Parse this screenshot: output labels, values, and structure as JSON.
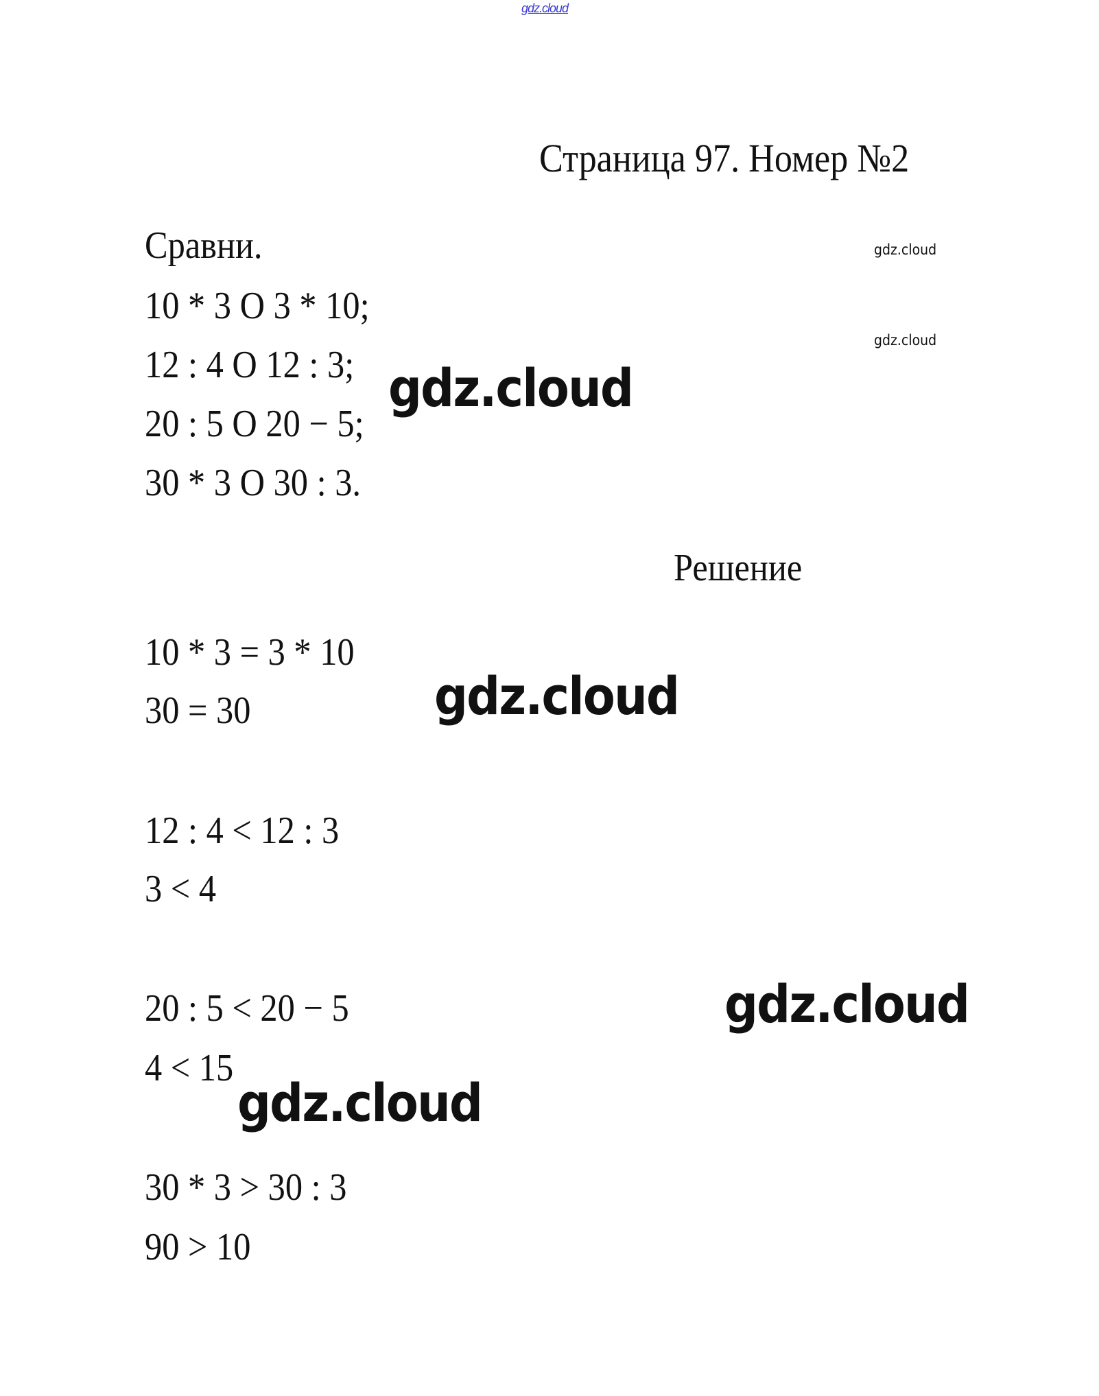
{
  "watermark_top": "gdz.cloud",
  "title": "Страница 97. Номер №2",
  "task": {
    "heading": "Сравни.",
    "lines": [
      "10 * 3 O 3 * 10;",
      "12 : 4 O 12 : 3;",
      "20 : 5 O 20 − 5;",
      "30 * 3 O 30 : 3."
    ]
  },
  "solution": {
    "heading": "Решение",
    "lines": [
      "10 * 3 = 3 * 10",
      "30 = 30",
      "12 : 4 < 12 : 3",
      "3 < 4",
      "20 : 5 < 20 − 5",
      "4 < 15",
      "30 * 3 > 30 : 3",
      "90 > 10"
    ]
  },
  "watermarks": [
    "gdz.cloud",
    "gdz.cloud",
    "gdz.cloud",
    "gdz.cloud",
    "gdz.cloud",
    "gdz.cloud"
  ]
}
